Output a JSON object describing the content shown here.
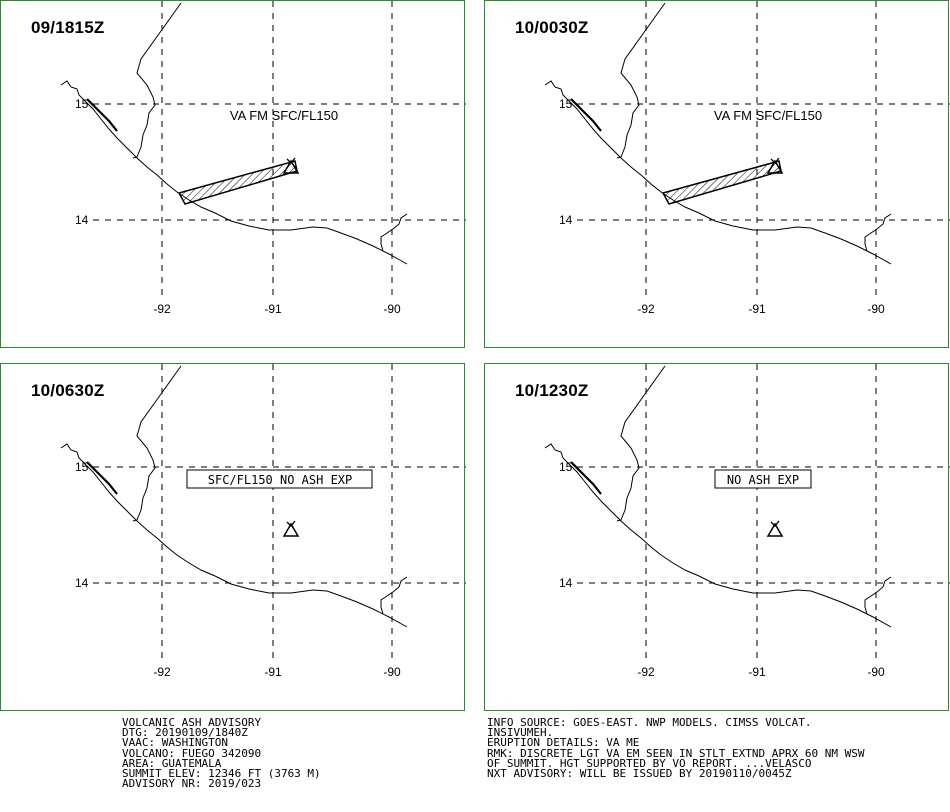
{
  "panels": [
    {
      "time": "09/1815Z",
      "label": "VA FM SFC/FL150",
      "label_boxed": false,
      "ash_area": "present"
    },
    {
      "time": "10/0030Z",
      "label": "VA FM SFC/FL150",
      "label_boxed": false,
      "ash_area": "present"
    },
    {
      "time": "10/0630Z",
      "label": "SFC/FL150 NO ASH EXP",
      "label_boxed": true,
      "ash_area": "none"
    },
    {
      "time": "10/1230Z",
      "label": "NO ASH EXP",
      "label_boxed": true,
      "ash_area": "none"
    }
  ],
  "map": {
    "lat_labels": [
      "15",
      "14"
    ],
    "lon_labels": [
      "-92",
      "-91",
      "-90"
    ]
  },
  "advisory_left": [
    "VOLCANIC ASH ADVISORY",
    "DTG: 20190109/1840Z",
    "VAAC: WASHINGTON",
    "VOLCANO: FUEGO 342090",
    "AREA: GUATEMALA",
    "SUMMIT ELEV: 12346 FT (3763 M)",
    "ADVISORY NR: 2019/023"
  ],
  "advisory_right": [
    "INFO SOURCE: GOES-EAST. NWP MODELS. CIMSS VOLCAT.",
    "INSIVUMEH.",
    "ERUPTION DETAILS: VA ME",
    "RMK: DISCRETE LGT VA EM SEEN IN STLT EXTND APRX 60 NM WSW",
    "OF SUMMIT. HGT SUPPORTED BY VO REPORT. ...VELASCO",
    "NXT ADVISORY: WILL BE ISSUED BY 20190110/0045Z"
  ],
  "colors": {
    "panel_border": "#2e8b2e",
    "lines": "#000000"
  }
}
